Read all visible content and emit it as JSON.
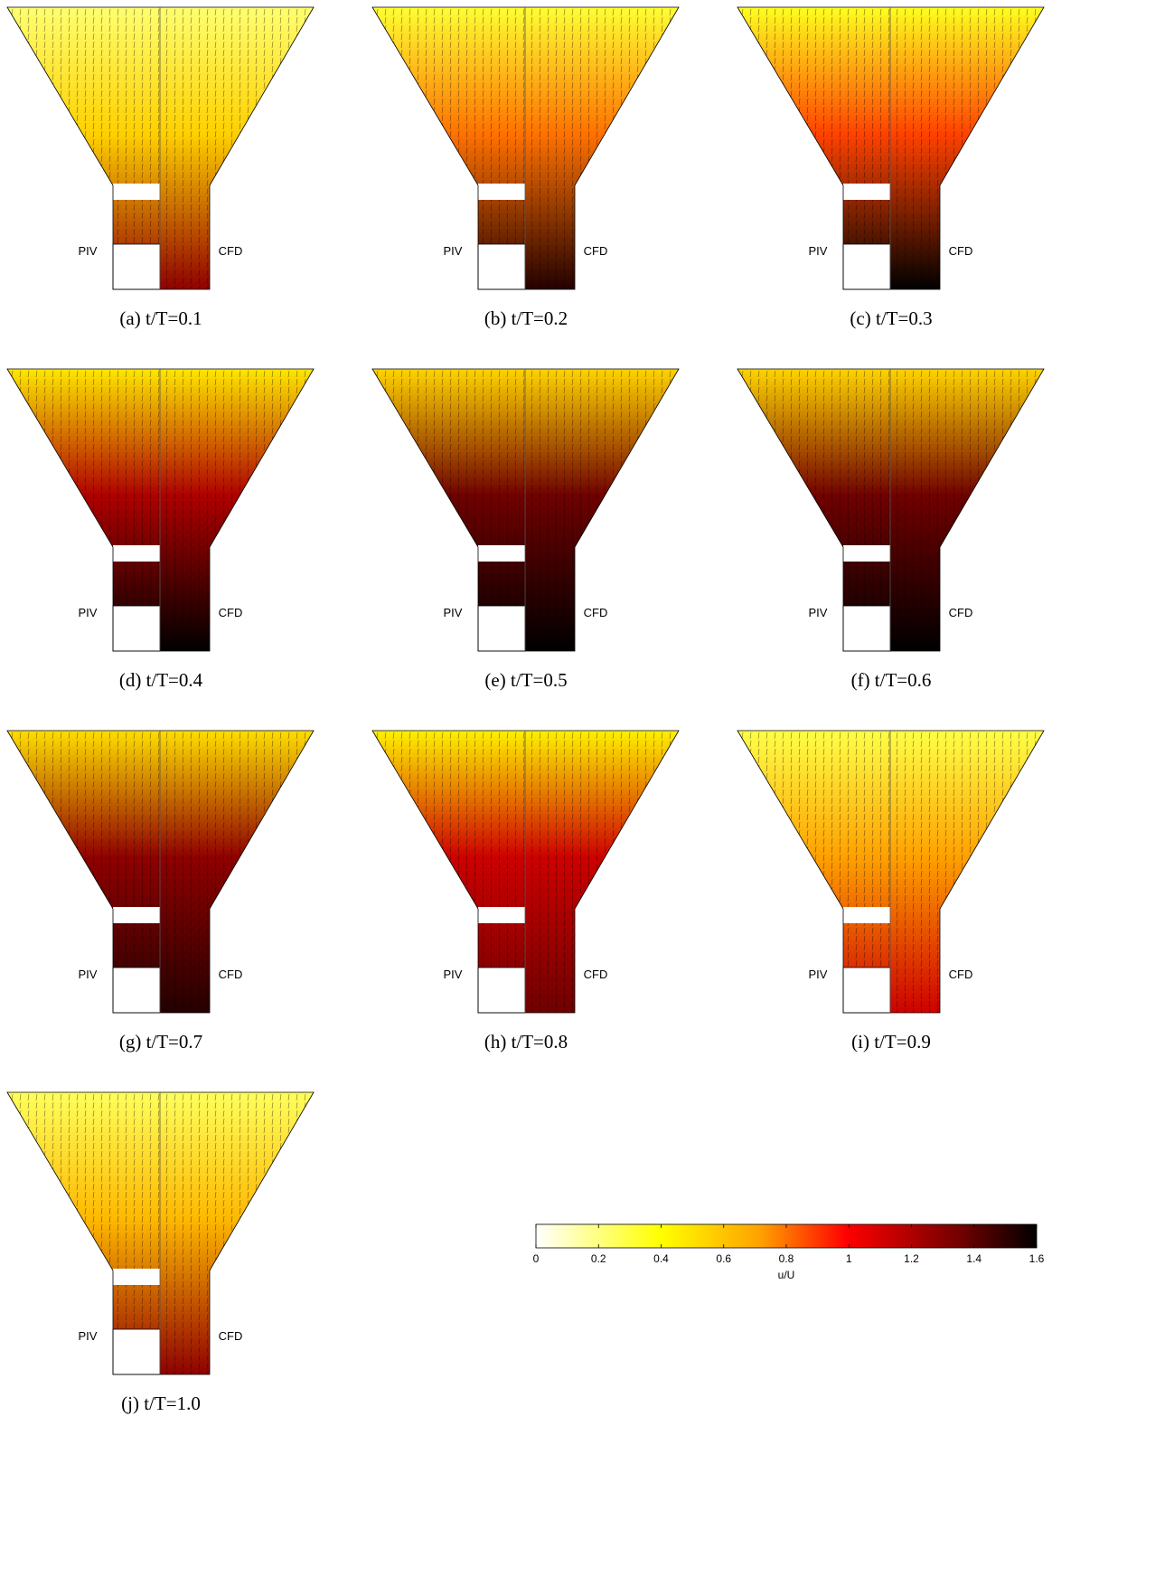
{
  "panels": [
    {
      "caption": "(a) t/T=0.1",
      "piv": "PIV",
      "cfd": "CFD"
    },
    {
      "caption": "(b) t/T=0.2",
      "piv": "PIV",
      "cfd": "CFD"
    },
    {
      "caption": "(c) t/T=0.3",
      "piv": "PIV",
      "cfd": "CFD"
    },
    {
      "caption": "(d) t/T=0.4",
      "piv": "PIV",
      "cfd": "CFD"
    },
    {
      "caption": "(e) t/T=0.5",
      "piv": "PIV",
      "cfd": "CFD"
    },
    {
      "caption": "(f) t/T=0.6",
      "piv": "PIV",
      "cfd": "CFD"
    },
    {
      "caption": "(g) t/T=0.7",
      "piv": "PIV",
      "cfd": "CFD"
    },
    {
      "caption": "(h) t/T=0.8",
      "piv": "PIV",
      "cfd": "CFD"
    },
    {
      "caption": "(i) t/T=0.9",
      "piv": "PIV",
      "cfd": "CFD"
    },
    {
      "caption": "(j) t/T=1.0",
      "piv": "PIV",
      "cfd": "CFD"
    }
  ],
  "colorbar": {
    "label": "u/U",
    "lim": [
      0,
      1.6
    ],
    "ticks": [
      0,
      0.2,
      0.4,
      0.6,
      0.8,
      1,
      1.2,
      1.4,
      1.6
    ]
  }
}
